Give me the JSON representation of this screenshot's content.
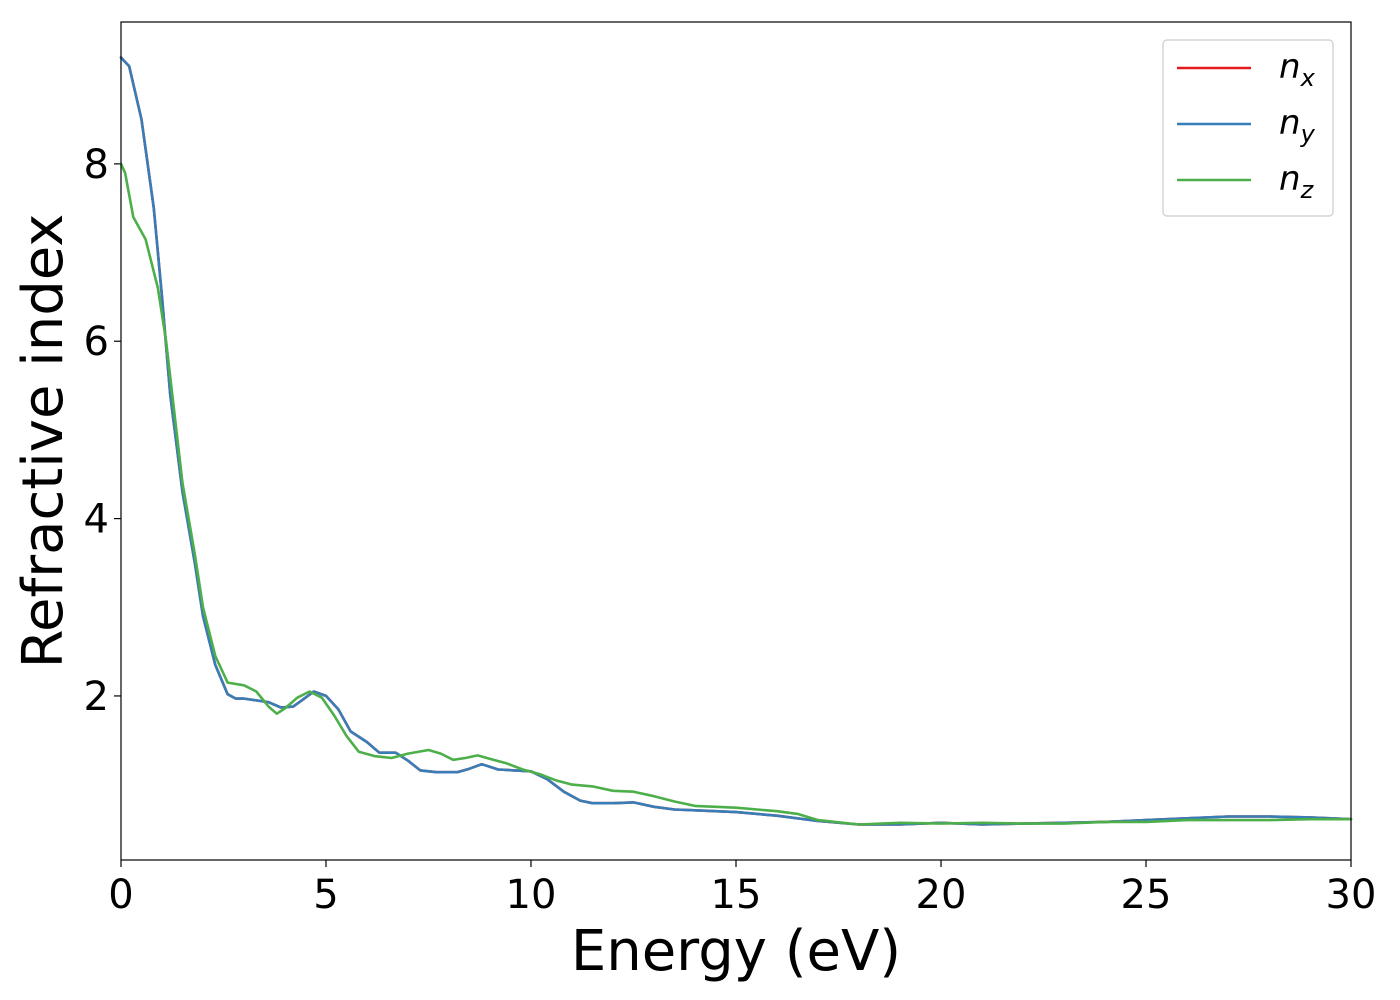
{
  "chart_data": {
    "type": "line",
    "title": "",
    "xlabel": "Energy (eV)",
    "ylabel": "Refractive index",
    "xlim": [
      0,
      30
    ],
    "ylim": [
      0.15,
      9.6
    ],
    "xticks": [
      0,
      5,
      10,
      15,
      20,
      25,
      30
    ],
    "yticks": [
      2,
      4,
      6,
      8
    ],
    "grid": false,
    "legend_position": "top-right",
    "series": [
      {
        "name": "n",
        "subscript": "x",
        "color": "#e41a1c",
        "points": [
          [
            0,
            9.2
          ],
          [
            0.2,
            9.1
          ],
          [
            0.5,
            8.5
          ],
          [
            0.8,
            7.5
          ],
          [
            1.0,
            6.5
          ],
          [
            1.2,
            5.4
          ],
          [
            1.5,
            4.3
          ],
          [
            1.8,
            3.5
          ],
          [
            2.0,
            2.9
          ],
          [
            2.3,
            2.35
          ],
          [
            2.6,
            2.02
          ],
          [
            2.8,
            1.97
          ],
          [
            3.0,
            1.97
          ],
          [
            3.3,
            1.95
          ],
          [
            3.6,
            1.93
          ],
          [
            3.9,
            1.87
          ],
          [
            4.2,
            1.88
          ],
          [
            4.5,
            1.98
          ],
          [
            4.7,
            2.05
          ],
          [
            5.0,
            2.0
          ],
          [
            5.3,
            1.85
          ],
          [
            5.6,
            1.6
          ],
          [
            6.0,
            1.48
          ],
          [
            6.3,
            1.36
          ],
          [
            6.7,
            1.36
          ],
          [
            7.0,
            1.27
          ],
          [
            7.3,
            1.16
          ],
          [
            7.7,
            1.14
          ],
          [
            8.2,
            1.14
          ],
          [
            8.5,
            1.18
          ],
          [
            8.8,
            1.23
          ],
          [
            9.2,
            1.17
          ],
          [
            9.6,
            1.16
          ],
          [
            10.0,
            1.15
          ],
          [
            10.4,
            1.06
          ],
          [
            10.8,
            0.92
          ],
          [
            11.2,
            0.82
          ],
          [
            11.5,
            0.79
          ],
          [
            12.0,
            0.79
          ],
          [
            12.5,
            0.8
          ],
          [
            13.0,
            0.75
          ],
          [
            13.5,
            0.72
          ],
          [
            14.0,
            0.71
          ],
          [
            15.0,
            0.69
          ],
          [
            16.0,
            0.65
          ],
          [
            17.0,
            0.59
          ],
          [
            18.0,
            0.55
          ],
          [
            19.0,
            0.55
          ],
          [
            20.0,
            0.57
          ],
          [
            21.0,
            0.55
          ],
          [
            22.0,
            0.56
          ],
          [
            23.0,
            0.57
          ],
          [
            24.0,
            0.58
          ],
          [
            25.0,
            0.6
          ],
          [
            26.0,
            0.62
          ],
          [
            27.0,
            0.64
          ],
          [
            28.0,
            0.64
          ],
          [
            29.0,
            0.63
          ],
          [
            30.0,
            0.61
          ]
        ]
      },
      {
        "name": "n",
        "subscript": "y",
        "color": "#377eb8",
        "points": [
          [
            0,
            9.2
          ],
          [
            0.2,
            9.1
          ],
          [
            0.5,
            8.5
          ],
          [
            0.8,
            7.5
          ],
          [
            1.0,
            6.5
          ],
          [
            1.2,
            5.4
          ],
          [
            1.5,
            4.3
          ],
          [
            1.8,
            3.5
          ],
          [
            2.0,
            2.9
          ],
          [
            2.3,
            2.35
          ],
          [
            2.6,
            2.02
          ],
          [
            2.8,
            1.97
          ],
          [
            3.0,
            1.97
          ],
          [
            3.3,
            1.95
          ],
          [
            3.6,
            1.93
          ],
          [
            3.9,
            1.87
          ],
          [
            4.2,
            1.88
          ],
          [
            4.5,
            1.98
          ],
          [
            4.7,
            2.05
          ],
          [
            5.0,
            2.0
          ],
          [
            5.3,
            1.85
          ],
          [
            5.6,
            1.6
          ],
          [
            6.0,
            1.48
          ],
          [
            6.3,
            1.36
          ],
          [
            6.7,
            1.36
          ],
          [
            7.0,
            1.27
          ],
          [
            7.3,
            1.16
          ],
          [
            7.7,
            1.14
          ],
          [
            8.2,
            1.14
          ],
          [
            8.5,
            1.18
          ],
          [
            8.8,
            1.23
          ],
          [
            9.2,
            1.17
          ],
          [
            9.6,
            1.16
          ],
          [
            10.0,
            1.15
          ],
          [
            10.4,
            1.06
          ],
          [
            10.8,
            0.92
          ],
          [
            11.2,
            0.82
          ],
          [
            11.5,
            0.79
          ],
          [
            12.0,
            0.79
          ],
          [
            12.5,
            0.8
          ],
          [
            13.0,
            0.75
          ],
          [
            13.5,
            0.72
          ],
          [
            14.0,
            0.71
          ],
          [
            15.0,
            0.69
          ],
          [
            16.0,
            0.65
          ],
          [
            17.0,
            0.59
          ],
          [
            18.0,
            0.55
          ],
          [
            19.0,
            0.55
          ],
          [
            20.0,
            0.57
          ],
          [
            21.0,
            0.55
          ],
          [
            22.0,
            0.56
          ],
          [
            23.0,
            0.57
          ],
          [
            24.0,
            0.58
          ],
          [
            25.0,
            0.6
          ],
          [
            26.0,
            0.62
          ],
          [
            27.0,
            0.64
          ],
          [
            28.0,
            0.64
          ],
          [
            29.0,
            0.63
          ],
          [
            30.0,
            0.61
          ]
        ]
      },
      {
        "name": "n",
        "subscript": "z",
        "color": "#4daf4a",
        "points": [
          [
            0,
            8.0
          ],
          [
            0.1,
            7.9
          ],
          [
            0.3,
            7.4
          ],
          [
            0.6,
            7.15
          ],
          [
            0.9,
            6.6
          ],
          [
            1.1,
            6.0
          ],
          [
            1.3,
            5.2
          ],
          [
            1.5,
            4.4
          ],
          [
            1.8,
            3.6
          ],
          [
            2.0,
            3.0
          ],
          [
            2.3,
            2.45
          ],
          [
            2.6,
            2.15
          ],
          [
            3.0,
            2.12
          ],
          [
            3.3,
            2.05
          ],
          [
            3.6,
            1.88
          ],
          [
            3.8,
            1.8
          ],
          [
            4.0,
            1.86
          ],
          [
            4.3,
            1.98
          ],
          [
            4.6,
            2.05
          ],
          [
            4.9,
            1.98
          ],
          [
            5.2,
            1.78
          ],
          [
            5.5,
            1.55
          ],
          [
            5.8,
            1.37
          ],
          [
            6.2,
            1.32
          ],
          [
            6.6,
            1.3
          ],
          [
            7.0,
            1.35
          ],
          [
            7.5,
            1.39
          ],
          [
            7.8,
            1.35
          ],
          [
            8.1,
            1.28
          ],
          [
            8.4,
            1.3
          ],
          [
            8.7,
            1.33
          ],
          [
            9.0,
            1.29
          ],
          [
            9.4,
            1.24
          ],
          [
            9.8,
            1.17
          ],
          [
            10.2,
            1.12
          ],
          [
            10.6,
            1.05
          ],
          [
            11.0,
            1.0
          ],
          [
            11.5,
            0.98
          ],
          [
            12.0,
            0.93
          ],
          [
            12.5,
            0.92
          ],
          [
            13.0,
            0.87
          ],
          [
            13.5,
            0.81
          ],
          [
            14.0,
            0.76
          ],
          [
            15.0,
            0.74
          ],
          [
            16.0,
            0.7
          ],
          [
            16.5,
            0.67
          ],
          [
            17.0,
            0.6
          ],
          [
            18.0,
            0.55
          ],
          [
            19.0,
            0.57
          ],
          [
            20.0,
            0.56
          ],
          [
            21.0,
            0.57
          ],
          [
            22.0,
            0.56
          ],
          [
            23.0,
            0.56
          ],
          [
            24.0,
            0.58
          ],
          [
            25.0,
            0.58
          ],
          [
            26.0,
            0.6
          ],
          [
            27.0,
            0.6
          ],
          [
            28.0,
            0.6
          ],
          [
            29.0,
            0.61
          ],
          [
            30.0,
            0.61
          ]
        ]
      }
    ]
  }
}
